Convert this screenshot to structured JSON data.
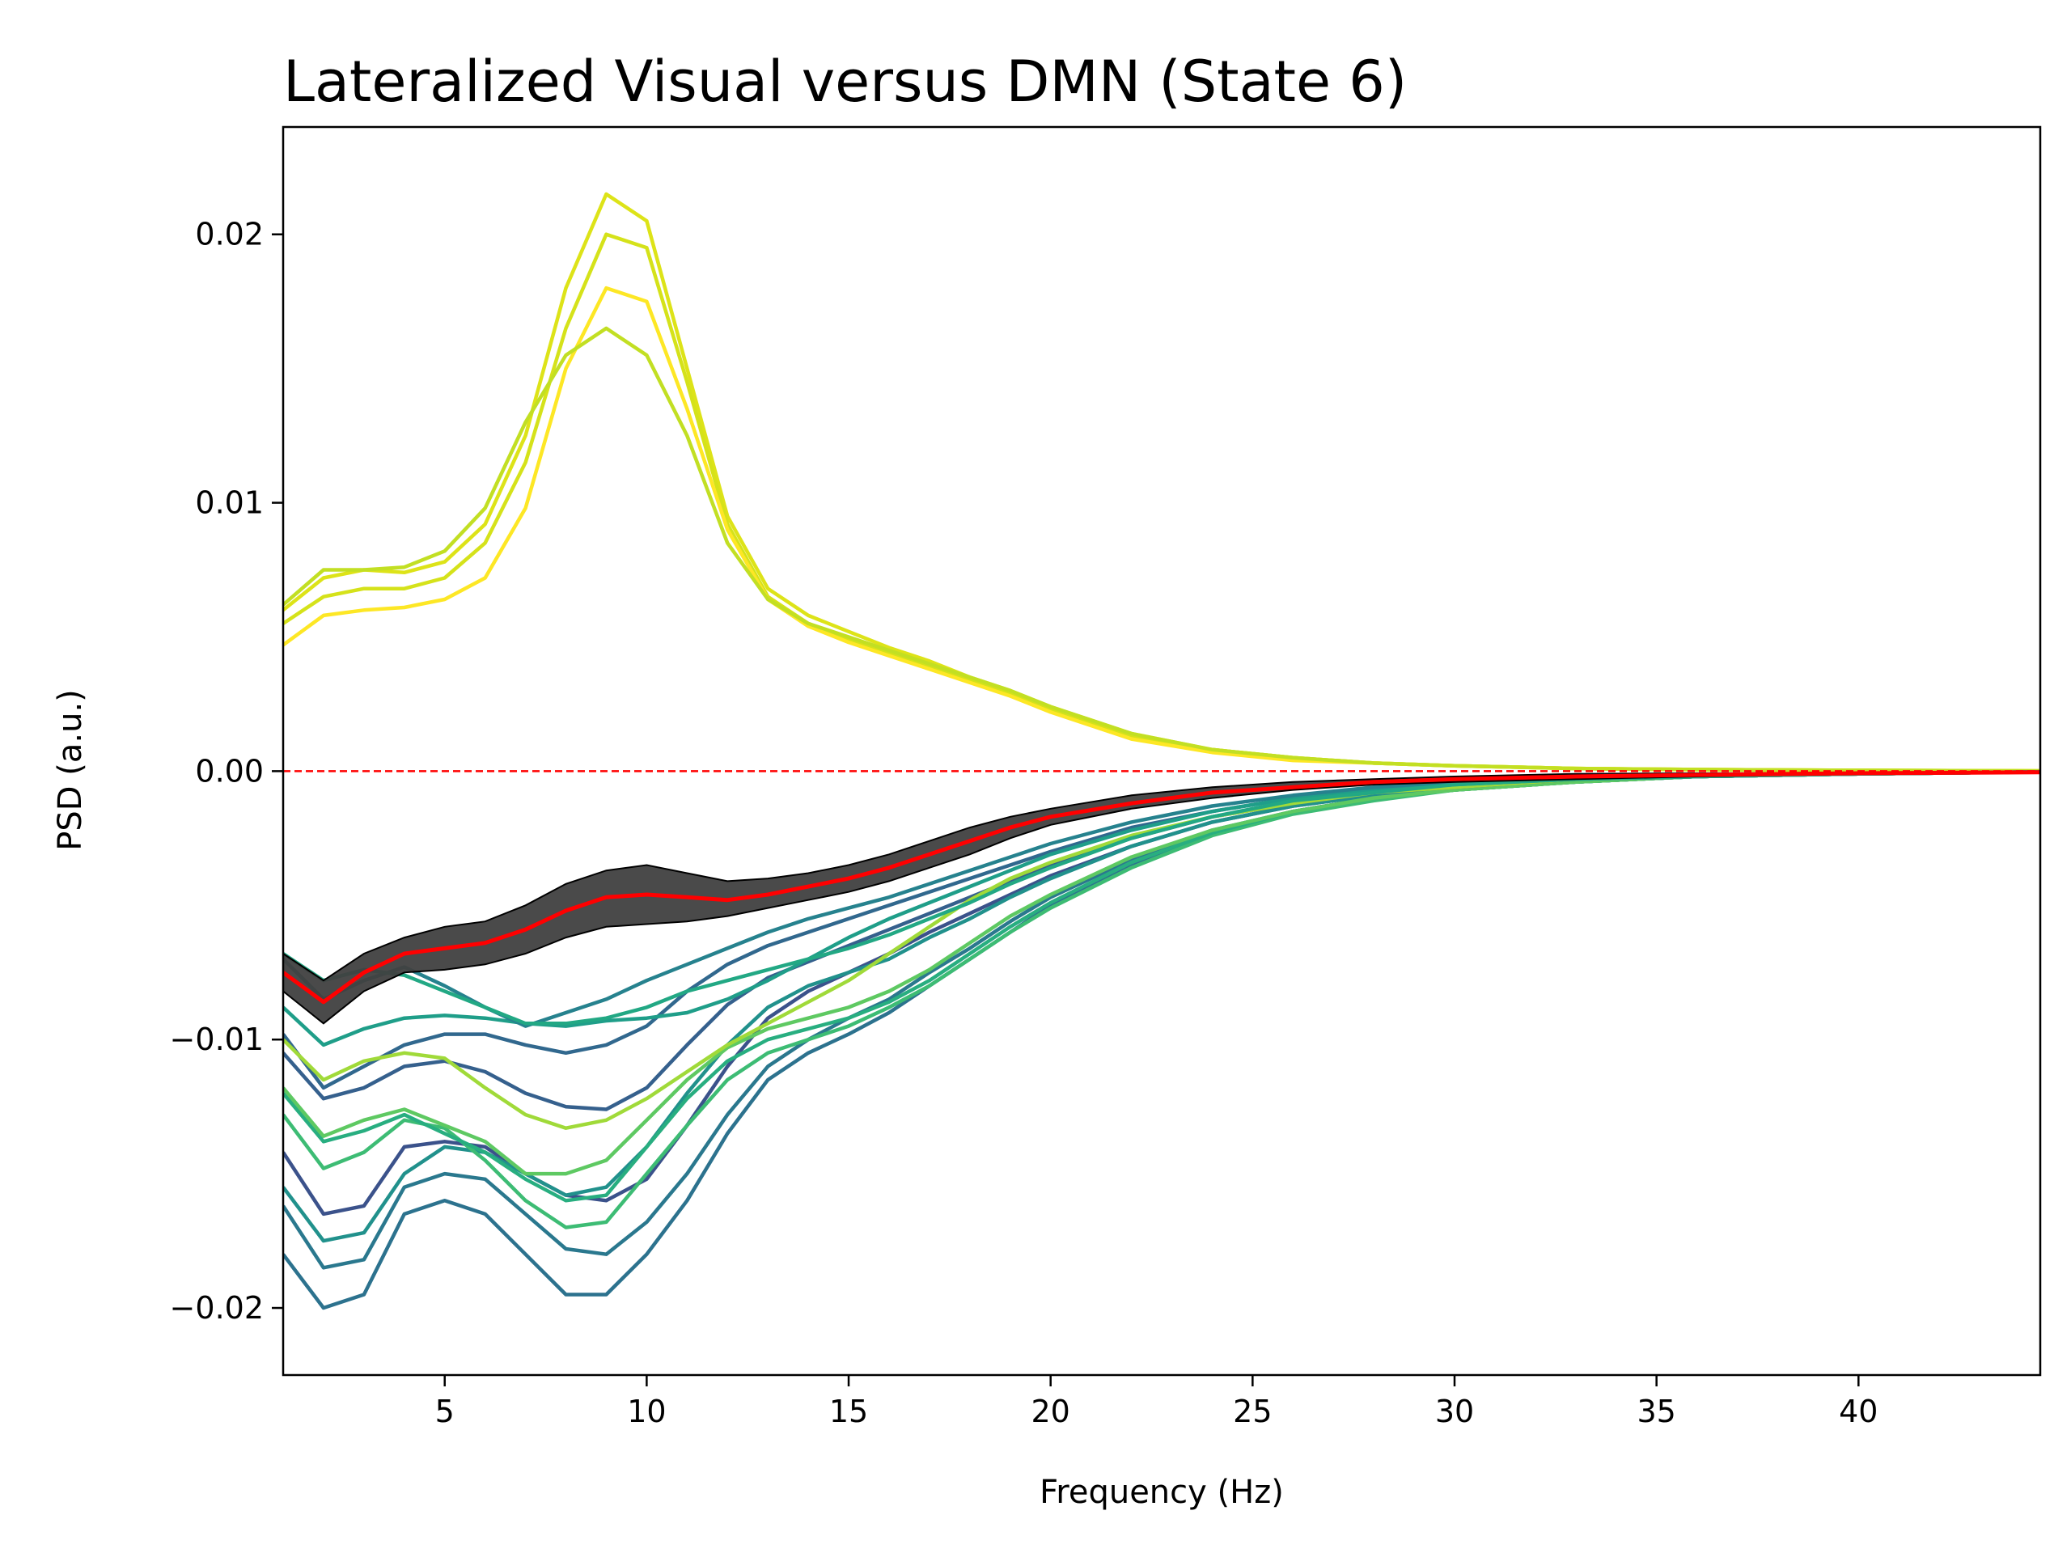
{
  "chart_data": {
    "type": "line",
    "title": "Lateralized Visual versus DMN (State 6)",
    "xlabel": "Frequency (Hz)",
    "ylabel": "PSD (a.u.)",
    "xlim": [
      1,
      44.5
    ],
    "ylim": [
      -0.0225,
      0.024
    ],
    "xticks": [
      5,
      10,
      15,
      20,
      25,
      30,
      35,
      40
    ],
    "xtick_labels": [
      "5",
      "10",
      "15",
      "20",
      "25",
      "30",
      "35",
      "40"
    ],
    "yticks": [
      -0.02,
      -0.01,
      0.0,
      0.01,
      0.02
    ],
    "ytick_labels": [
      "−0.02",
      "−0.01",
      "0.00",
      "0.01",
      "0.02"
    ],
    "grid": false,
    "legend": "none",
    "zero_line": {
      "y": 0,
      "color": "#ff0000",
      "style": "dashed"
    },
    "x": [
      1,
      2,
      3,
      4,
      5,
      6,
      7,
      8,
      9,
      10,
      11,
      12,
      13,
      14,
      15,
      16,
      17,
      18,
      19,
      20,
      22,
      24,
      26,
      28,
      30,
      33,
      36,
      40,
      44.5
    ],
    "series": [
      {
        "color": "#dde318",
        "values": [
          0.006,
          0.0072,
          0.0075,
          0.0074,
          0.0078,
          0.0092,
          0.0125,
          0.018,
          0.0215,
          0.0205,
          0.015,
          0.0095,
          0.0068,
          0.0058,
          0.0052,
          0.0046,
          0.0041,
          0.0035,
          0.003,
          0.0024,
          0.0014,
          0.0008,
          0.0005,
          0.0003,
          0.0002,
          0.0001,
          6e-05,
          3e-05,
          1e-05
        ]
      },
      {
        "color": "#d5e21a",
        "values": [
          0.0055,
          0.0065,
          0.0068,
          0.0068,
          0.0072,
          0.0085,
          0.0115,
          0.0165,
          0.02,
          0.0195,
          0.0145,
          0.0092,
          0.0065,
          0.0055,
          0.0049,
          0.0044,
          0.0039,
          0.0034,
          0.0029,
          0.0023,
          0.0013,
          0.0008,
          0.0005,
          0.0003,
          0.0002,
          0.0001,
          6e-05,
          3e-05,
          1e-05
        ]
      },
      {
        "color": "#fde725",
        "values": [
          0.0047,
          0.0058,
          0.006,
          0.0061,
          0.0064,
          0.0072,
          0.0098,
          0.015,
          0.018,
          0.0175,
          0.0135,
          0.009,
          0.0064,
          0.0054,
          0.0048,
          0.0043,
          0.0038,
          0.0033,
          0.0028,
          0.0022,
          0.0012,
          0.0007,
          0.0004,
          0.0003,
          0.0002,
          0.0001,
          5e-05,
          2e-05,
          1e-05
        ]
      },
      {
        "color": "#c2df23",
        "values": [
          0.0062,
          0.0075,
          0.0075,
          0.0076,
          0.0082,
          0.0098,
          0.013,
          0.0155,
          0.0165,
          0.0155,
          0.0125,
          0.0085,
          0.0064,
          0.0055,
          0.005,
          0.0045,
          0.004,
          0.0035,
          0.003,
          0.0024,
          0.0014,
          0.0008,
          0.0005,
          0.0003,
          0.0002,
          0.0001,
          6e-05,
          3e-05,
          1e-05
        ]
      },
      {
        "color": "#2c728e",
        "values": [
          -0.018,
          -0.02,
          -0.0195,
          -0.0165,
          -0.016,
          -0.0165,
          -0.018,
          -0.0195,
          -0.0195,
          -0.018,
          -0.016,
          -0.0135,
          -0.0115,
          -0.0105,
          -0.0098,
          -0.009,
          -0.008,
          -0.007,
          -0.006,
          -0.005,
          -0.0035,
          -0.0023,
          -0.0015,
          -0.001,
          -0.0007,
          -0.0004,
          -0.0002,
          -0.0001,
          -3e-05
        ]
      },
      {
        "color": "#2a788e",
        "values": [
          -0.0162,
          -0.0185,
          -0.0182,
          -0.0155,
          -0.015,
          -0.0152,
          -0.0165,
          -0.0178,
          -0.018,
          -0.0168,
          -0.015,
          -0.0128,
          -0.011,
          -0.01,
          -0.0092,
          -0.0085,
          -0.0075,
          -0.0066,
          -0.0056,
          -0.0047,
          -0.0033,
          -0.0022,
          -0.0015,
          -0.001,
          -0.0007,
          -0.0004,
          -0.0002,
          -0.0001,
          -3e-05
        ]
      },
      {
        "color": "#3b528b",
        "values": [
          -0.0142,
          -0.0165,
          -0.0162,
          -0.014,
          -0.0138,
          -0.014,
          -0.015,
          -0.0158,
          -0.016,
          -0.0152,
          -0.0132,
          -0.011,
          -0.0092,
          -0.0082,
          -0.0075,
          -0.0068,
          -0.006,
          -0.0053,
          -0.0046,
          -0.0039,
          -0.0028,
          -0.0019,
          -0.0013,
          -0.0009,
          -0.0006,
          -0.0004,
          -0.0002,
          -0.0001,
          -3e-05
        ]
      },
      {
        "color": "#21918c",
        "values": [
          -0.0155,
          -0.0175,
          -0.0172,
          -0.015,
          -0.014,
          -0.0142,
          -0.015,
          -0.0158,
          -0.0155,
          -0.014,
          -0.012,
          -0.0102,
          -0.0088,
          -0.008,
          -0.0075,
          -0.007,
          -0.0062,
          -0.0055,
          -0.0047,
          -0.004,
          -0.0028,
          -0.0019,
          -0.0013,
          -0.0009,
          -0.0006,
          -0.0004,
          -0.0002,
          -0.0001,
          -3e-05
        ]
      },
      {
        "color": "#3dbc74",
        "values": [
          -0.0128,
          -0.0148,
          -0.0142,
          -0.013,
          -0.0133,
          -0.0145,
          -0.016,
          -0.017,
          -0.0168,
          -0.015,
          -0.0132,
          -0.0115,
          -0.0105,
          -0.01,
          -0.0095,
          -0.0088,
          -0.008,
          -0.007,
          -0.006,
          -0.0051,
          -0.0036,
          -0.0024,
          -0.0016,
          -0.0011,
          -0.0007,
          -0.0004,
          -0.0002,
          -0.0001,
          -3e-05
        ]
      },
      {
        "color": "#28ae80",
        "values": [
          -0.012,
          -0.0138,
          -0.0134,
          -0.0128,
          -0.0135,
          -0.0142,
          -0.0152,
          -0.016,
          -0.0158,
          -0.014,
          -0.0122,
          -0.0108,
          -0.01,
          -0.0096,
          -0.0092,
          -0.0086,
          -0.0078,
          -0.0068,
          -0.0058,
          -0.0049,
          -0.0034,
          -0.0023,
          -0.0015,
          -0.001,
          -0.0007,
          -0.0004,
          -0.0002,
          -0.0001,
          -3e-05
        ]
      },
      {
        "color": "#5ec962",
        "values": [
          -0.0118,
          -0.0136,
          -0.013,
          -0.0126,
          -0.0132,
          -0.0138,
          -0.015,
          -0.015,
          -0.0145,
          -0.013,
          -0.0115,
          -0.0103,
          -0.0096,
          -0.0092,
          -0.0088,
          -0.0082,
          -0.0074,
          -0.0064,
          -0.0054,
          -0.0046,
          -0.0032,
          -0.0022,
          -0.0015,
          -0.001,
          -0.0007,
          -0.0004,
          -0.0002,
          -0.0001,
          -3e-05
        ]
      },
      {
        "color": "#35608d",
        "values": [
          -0.0105,
          -0.0122,
          -0.0118,
          -0.011,
          -0.0108,
          -0.0112,
          -0.012,
          -0.0125,
          -0.0126,
          -0.0118,
          -0.0102,
          -0.0087,
          -0.0077,
          -0.0071,
          -0.0065,
          -0.0059,
          -0.0053,
          -0.0047,
          -0.0041,
          -0.0035,
          -0.0025,
          -0.0017,
          -0.0012,
          -0.0008,
          -0.0006,
          -0.0003,
          -0.0002,
          -0.0001,
          -3e-05
        ]
      },
      {
        "color": "#31688e",
        "values": [
          -0.0098,
          -0.0118,
          -0.011,
          -0.0102,
          -0.0098,
          -0.0098,
          -0.0102,
          -0.0105,
          -0.0102,
          -0.0095,
          -0.0082,
          -0.0072,
          -0.0065,
          -0.006,
          -0.0055,
          -0.005,
          -0.0045,
          -0.004,
          -0.0035,
          -0.003,
          -0.0021,
          -0.0015,
          -0.001,
          -0.0007,
          -0.0005,
          -0.0003,
          -0.0002,
          -0.0001,
          -3e-05
        ]
      },
      {
        "color": "#a0da39",
        "values": [
          -0.01,
          -0.0115,
          -0.0108,
          -0.0105,
          -0.0107,
          -0.0118,
          -0.0128,
          -0.0133,
          -0.013,
          -0.0122,
          -0.0112,
          -0.0102,
          -0.0094,
          -0.0086,
          -0.0078,
          -0.0068,
          -0.0058,
          -0.0048,
          -0.004,
          -0.0034,
          -0.0024,
          -0.0017,
          -0.0012,
          -0.0008,
          -0.0006,
          -0.0003,
          -0.0002,
          -0.0001,
          -3e-05
        ]
      },
      {
        "color": "#1f9e89",
        "values": [
          -0.0088,
          -0.0102,
          -0.0096,
          -0.0092,
          -0.0091,
          -0.0092,
          -0.0094,
          -0.0095,
          -0.0093,
          -0.0092,
          -0.009,
          -0.0085,
          -0.0078,
          -0.007,
          -0.0062,
          -0.0055,
          -0.0049,
          -0.0043,
          -0.0037,
          -0.0031,
          -0.0022,
          -0.0015,
          -0.001,
          -0.0007,
          -0.0005,
          -0.0003,
          -0.0002,
          -0.0001,
          -3e-05
        ]
      },
      {
        "color": "#26828e",
        "values": [
          -0.007,
          -0.0085,
          -0.0078,
          -0.0073,
          -0.008,
          -0.0088,
          -0.0095,
          -0.009,
          -0.0085,
          -0.0078,
          -0.0072,
          -0.0066,
          -0.006,
          -0.0055,
          -0.0051,
          -0.0047,
          -0.0042,
          -0.0037,
          -0.0032,
          -0.0027,
          -0.0019,
          -0.0013,
          -0.0009,
          -0.0006,
          -0.0004,
          -0.0003,
          -0.0002,
          -0.0001,
          -3e-05
        ]
      },
      {
        "color": "#22a884",
        "values": [
          -0.0068,
          -0.0078,
          -0.0074,
          -0.0076,
          -0.0082,
          -0.0088,
          -0.0094,
          -0.0094,
          -0.0092,
          -0.0088,
          -0.0082,
          -0.0078,
          -0.0074,
          -0.007,
          -0.0066,
          -0.0061,
          -0.0055,
          -0.0049,
          -0.0042,
          -0.0036,
          -0.0025,
          -0.0017,
          -0.0011,
          -0.0008,
          -0.0005,
          -0.0003,
          -0.0002,
          -0.0001,
          -3e-05
        ]
      }
    ],
    "mean_band": {
      "upper": [
        -0.0068,
        -0.0078,
        -0.0068,
        -0.0062,
        -0.0058,
        -0.0056,
        -0.005,
        -0.0042,
        -0.0037,
        -0.0035,
        -0.0038,
        -0.0041,
        -0.004,
        -0.0038,
        -0.0035,
        -0.0031,
        -0.0026,
        -0.0021,
        -0.0017,
        -0.0014,
        -0.0009,
        -0.0006,
        -0.0004,
        -0.0003,
        -0.0002,
        -0.0001,
        -8e-05,
        -5e-05,
        -3e-05
      ],
      "lower": [
        -0.0082,
        -0.0094,
        -0.0082,
        -0.0075,
        -0.0074,
        -0.0072,
        -0.0068,
        -0.0062,
        -0.0058,
        -0.0057,
        -0.0056,
        -0.0054,
        -0.0051,
        -0.0048,
        -0.0045,
        -0.0041,
        -0.0036,
        -0.0031,
        -0.0025,
        -0.002,
        -0.0014,
        -0.001,
        -0.0007,
        -0.0005,
        -0.0004,
        -0.0003,
        -0.0002,
        -0.0001,
        -6e-05
      ],
      "color": "#404040"
    },
    "mean_line": {
      "color": "#ff0000",
      "values": [
        -0.0075,
        -0.0086,
        -0.0075,
        -0.0068,
        -0.0066,
        -0.0064,
        -0.0059,
        -0.0052,
        -0.0047,
        -0.0046,
        -0.0047,
        -0.0048,
        -0.0046,
        -0.0043,
        -0.004,
        -0.0036,
        -0.0031,
        -0.0026,
        -0.0021,
        -0.0017,
        -0.0012,
        -0.0008,
        -0.0006,
        -0.0004,
        -0.0003,
        -0.0002,
        -0.00014,
        -8e-05,
        -4e-05
      ]
    }
  }
}
